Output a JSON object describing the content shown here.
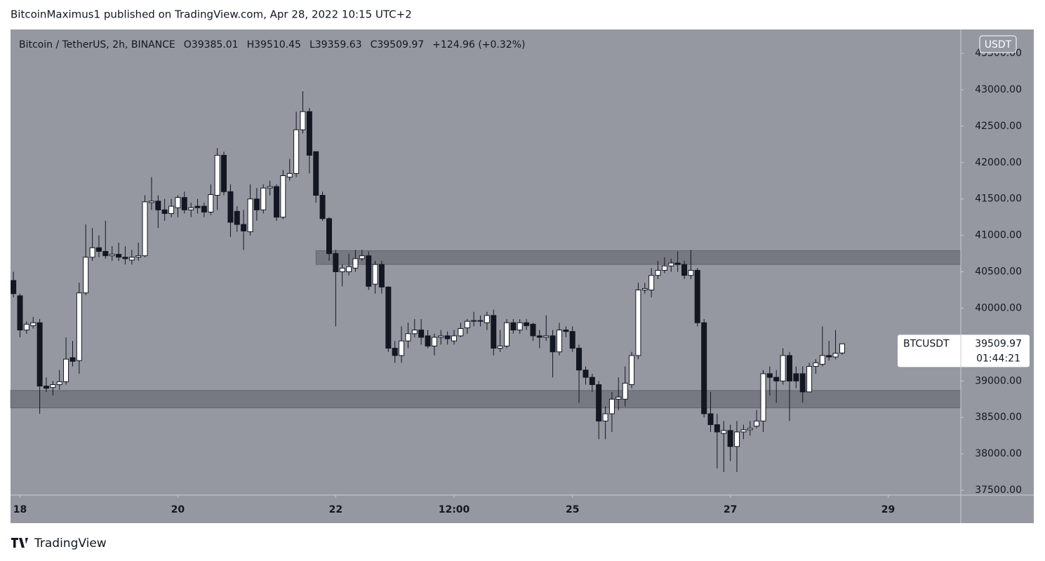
{
  "publisher_line": "BitcoinMaximus1 published on TradingView.com, Apr 28, 2022 10:15 UTC+2",
  "brand": "TradingView",
  "chart_data": {
    "type": "candlestick",
    "title": "Bitcoin / TetherUS, 2h, BINANCE",
    "legend_labels": [
      "O",
      "H",
      "L",
      "C"
    ],
    "change_label": "+124.96 (+0.32%)",
    "symbol": "BTCUSDT",
    "countdown": "01:44:21",
    "currency": "USDT",
    "up_color": "#ffffff",
    "down_color": "#131722",
    "background": "#9598a1",
    "x": [
      17.917,
      18,
      18.083,
      18.167,
      18.25,
      18.333,
      18.417,
      18.5,
      18.583,
      18.667,
      18.75,
      18.833,
      18.917,
      19,
      19.083,
      19.167,
      19.25,
      19.333,
      19.417,
      19.5,
      19.583,
      19.667,
      19.75,
      19.833,
      19.917,
      20,
      20.083,
      20.167,
      20.25,
      20.333,
      20.417,
      20.5,
      20.583,
      20.667,
      20.75,
      20.833,
      20.917,
      21,
      21.083,
      21.167,
      21.25,
      21.333,
      21.417,
      21.5,
      21.583,
      21.667,
      21.75,
      21.833,
      21.917,
      22,
      22.083,
      22.167,
      22.25,
      22.333,
      22.417,
      22.5,
      22.583,
      22.667,
      22.75,
      22.833,
      22.917,
      23,
      23.083,
      23.167,
      23.25,
      23.333,
      23.417,
      23.5,
      23.583,
      23.667,
      23.75,
      23.833,
      23.917,
      24,
      24.083,
      24.167,
      24.25,
      24.333,
      24.417,
      24.5,
      24.583,
      24.667,
      24.75,
      24.833,
      24.917,
      25,
      25.083,
      25.167,
      25.25,
      25.333,
      25.417,
      25.5,
      25.583,
      25.667,
      25.75,
      25.833,
      25.917,
      26,
      26.083,
      26.167,
      26.25,
      26.333,
      26.417,
      26.5,
      26.583,
      26.667,
      26.75,
      26.833,
      26.917,
      27,
      27.083,
      27.167,
      27.25,
      27.333,
      27.417,
      27.5,
      27.583,
      27.667,
      27.75,
      27.833,
      27.917,
      28,
      28.083,
      28.167,
      28.25,
      28.333,
      28.417
    ],
    "open": [
      40380,
      40170,
      39700,
      39760,
      39800,
      38930,
      38910,
      38950,
      38990,
      39320,
      39280,
      40210,
      40700,
      40830,
      40780,
      40720,
      40740,
      40700,
      40660,
      40700,
      40720,
      41450,
      41470,
      41350,
      41300,
      41380,
      41520,
      41350,
      41400,
      41400,
      41320,
      41550,
      42100,
      41600,
      41330,
      41150,
      41050,
      41500,
      41350,
      41650,
      41670,
      41250,
      41800,
      41850,
      42450,
      42700,
      42150,
      41550,
      41230,
      40750,
      40500,
      40500,
      40550,
      40680,
      40720,
      40330,
      40600,
      40290,
      39450,
      39350,
      39550,
      39650,
      39700,
      39620,
      39480,
      39600,
      39620,
      39550,
      39620,
      39730,
      39820,
      39830,
      39800,
      39900,
      39450,
      39480,
      39800,
      39700,
      39800,
      39780,
      39620,
      39600,
      39620,
      39400,
      39700,
      39680,
      39450,
      39150,
      39050,
      38950,
      38450,
      38550,
      38750,
      38750,
      38950,
      39350,
      40250,
      40250,
      40450,
      40520,
      40580,
      40620,
      40600,
      40450,
      40520,
      39800,
      38550,
      38400,
      38280,
      38320,
      38100,
      38300,
      38330,
      38380,
      38450,
      39100,
      39050,
      39000,
      39350,
      39100,
      39100,
      38850,
      39200,
      39230,
      39350,
      39330,
      39385.01
    ],
    "high": [
      40500,
      40200,
      39820,
      39880,
      39850,
      39050,
      39000,
      39150,
      39600,
      39550,
      40350,
      41150,
      41100,
      41000,
      41200,
      40850,
      40900,
      40850,
      40800,
      40900,
      41550,
      41800,
      41550,
      41500,
      41500,
      41550,
      41600,
      41450,
      41500,
      41450,
      41700,
      42200,
      42150,
      41700,
      41400,
      41350,
      41700,
      41650,
      41700,
      41750,
      41700,
      41900,
      42050,
      42700,
      42980,
      42750,
      42150,
      41600,
      41250,
      40800,
      40600,
      40750,
      40800,
      40800,
      40780,
      40650,
      40650,
      40300,
      39550,
      39750,
      39800,
      39850,
      39850,
      39700,
      39650,
      39700,
      39680,
      39700,
      39800,
      39850,
      39950,
      39900,
      39950,
      39980,
      39700,
      39850,
      39850,
      39850,
      39850,
      39800,
      39700,
      39900,
      39700,
      39800,
      39750,
      39750,
      39500,
      39200,
      39100,
      39000,
      38650,
      38850,
      39050,
      39200,
      39400,
      40350,
      40350,
      40550,
      40650,
      40700,
      40680,
      40780,
      40650,
      40800,
      40550,
      39850,
      38850,
      38550,
      38450,
      38400,
      38450,
      38400,
      38450,
      38600,
      39150,
      39200,
      39150,
      39450,
      39400,
      39200,
      39200,
      39250,
      39300,
      39750,
      39550,
      39700,
      39510.45
    ],
    "low": [
      40150,
      39600,
      39650,
      39720,
      38550,
      38850,
      38800,
      38880,
      38950,
      39200,
      39100,
      40180,
      40650,
      40700,
      40680,
      40650,
      40650,
      40600,
      40600,
      40650,
      40700,
      41350,
      41100,
      41200,
      41250,
      41250,
      41300,
      41250,
      41300,
      41250,
      41280,
      41350,
      41550,
      40980,
      41050,
      40800,
      41000,
      41200,
      41300,
      41550,
      41200,
      41220,
      41750,
      41800,
      42400,
      41850,
      41450,
      41200,
      40650,
      39750,
      40300,
      40450,
      40500,
      40650,
      40250,
      40200,
      40200,
      39400,
      39250,
      39250,
      39450,
      39600,
      39500,
      39450,
      39350,
      39500,
      39500,
      39500,
      39600,
      39650,
      39750,
      39750,
      39700,
      39350,
      39400,
      39450,
      39650,
      39650,
      39700,
      39550,
      39450,
      39550,
      39050,
      39350,
      39600,
      39400,
      38700,
      38950,
      38850,
      38200,
      38200,
      38300,
      38600,
      38650,
      38900,
      39300,
      40200,
      40150,
      40400,
      40480,
      40500,
      40500,
      40400,
      40400,
      39750,
      38500,
      38300,
      37800,
      37750,
      37900,
      37750,
      38200,
      38250,
      38350,
      38300,
      38800,
      38700,
      38950,
      38450,
      38900,
      38700,
      38850,
      39100,
      39200,
      39280,
      39300,
      39359.63
    ],
    "close": [
      40200,
      39700,
      39780,
      39800,
      38930,
      38900,
      38950,
      38990,
      39300,
      39270,
      40210,
      40700,
      40830,
      40780,
      40720,
      40740,
      40700,
      40680,
      40700,
      40720,
      41460,
      41470,
      41350,
      41300,
      41400,
      41520,
      41350,
      41380,
      41380,
      41320,
      41560,
      42100,
      41600,
      41180,
      41150,
      41060,
      41500,
      41350,
      41650,
      41670,
      41250,
      41820,
      41850,
      42450,
      42700,
      42100,
      41550,
      41230,
      40750,
      40500,
      40550,
      40570,
      40680,
      40720,
      40300,
      40600,
      40290,
      39450,
      39350,
      39550,
      39650,
      39700,
      39600,
      39480,
      39600,
      39620,
      39580,
      39620,
      39720,
      39820,
      39830,
      39820,
      39900,
      39450,
      39480,
      39800,
      39700,
      39800,
      39760,
      39620,
      39600,
      39620,
      39400,
      39700,
      39680,
      39450,
      39150,
      39050,
      38950,
      38450,
      38550,
      38750,
      38780,
      38970,
      39350,
      40250,
      40270,
      40450,
      40520,
      40580,
      40620,
      40600,
      40450,
      40520,
      39800,
      38550,
      38400,
      38300,
      38320,
      38100,
      38300,
      38330,
      38350,
      38450,
      39100,
      39050,
      39000,
      39350,
      39000,
      39000,
      38850,
      39200,
      39250,
      39350,
      39330,
      39380,
      39509.97
    ],
    "zones": [
      {
        "x_start": 21.75,
        "from": 40600,
        "to": 40790
      },
      {
        "x_start": 17.88,
        "from": 38630,
        "to": 38870
      }
    ],
    "xlim": [
      17.88,
      29.92
    ],
    "xticks": [
      18,
      20,
      22,
      {
        "value": 23.5,
        "label": "12:00"
      },
      25,
      27,
      29
    ],
    "ylim": [
      37433,
      43828
    ],
    "yticks": [
      {
        "value": 37500,
        "label": "37500.00"
      },
      {
        "value": 38000,
        "label": "38000.00"
      },
      {
        "value": 38500,
        "label": "38500.00"
      },
      {
        "value": 39000,
        "label": "39000.00"
      },
      {
        "value": 39500,
        "label": "39500.00"
      },
      {
        "value": 40000,
        "label": "40000.00"
      },
      {
        "value": 40500,
        "label": "40500.00"
      },
      {
        "value": 41000,
        "label": "41000.00"
      },
      {
        "value": 41500,
        "label": "41500.00"
      },
      {
        "value": 42000,
        "label": "42000.00"
      },
      {
        "value": 42500,
        "label": "42500.00"
      },
      {
        "value": 43000,
        "label": "43000.00"
      },
      {
        "value": 43500,
        "label": "43500.00"
      }
    ]
  }
}
